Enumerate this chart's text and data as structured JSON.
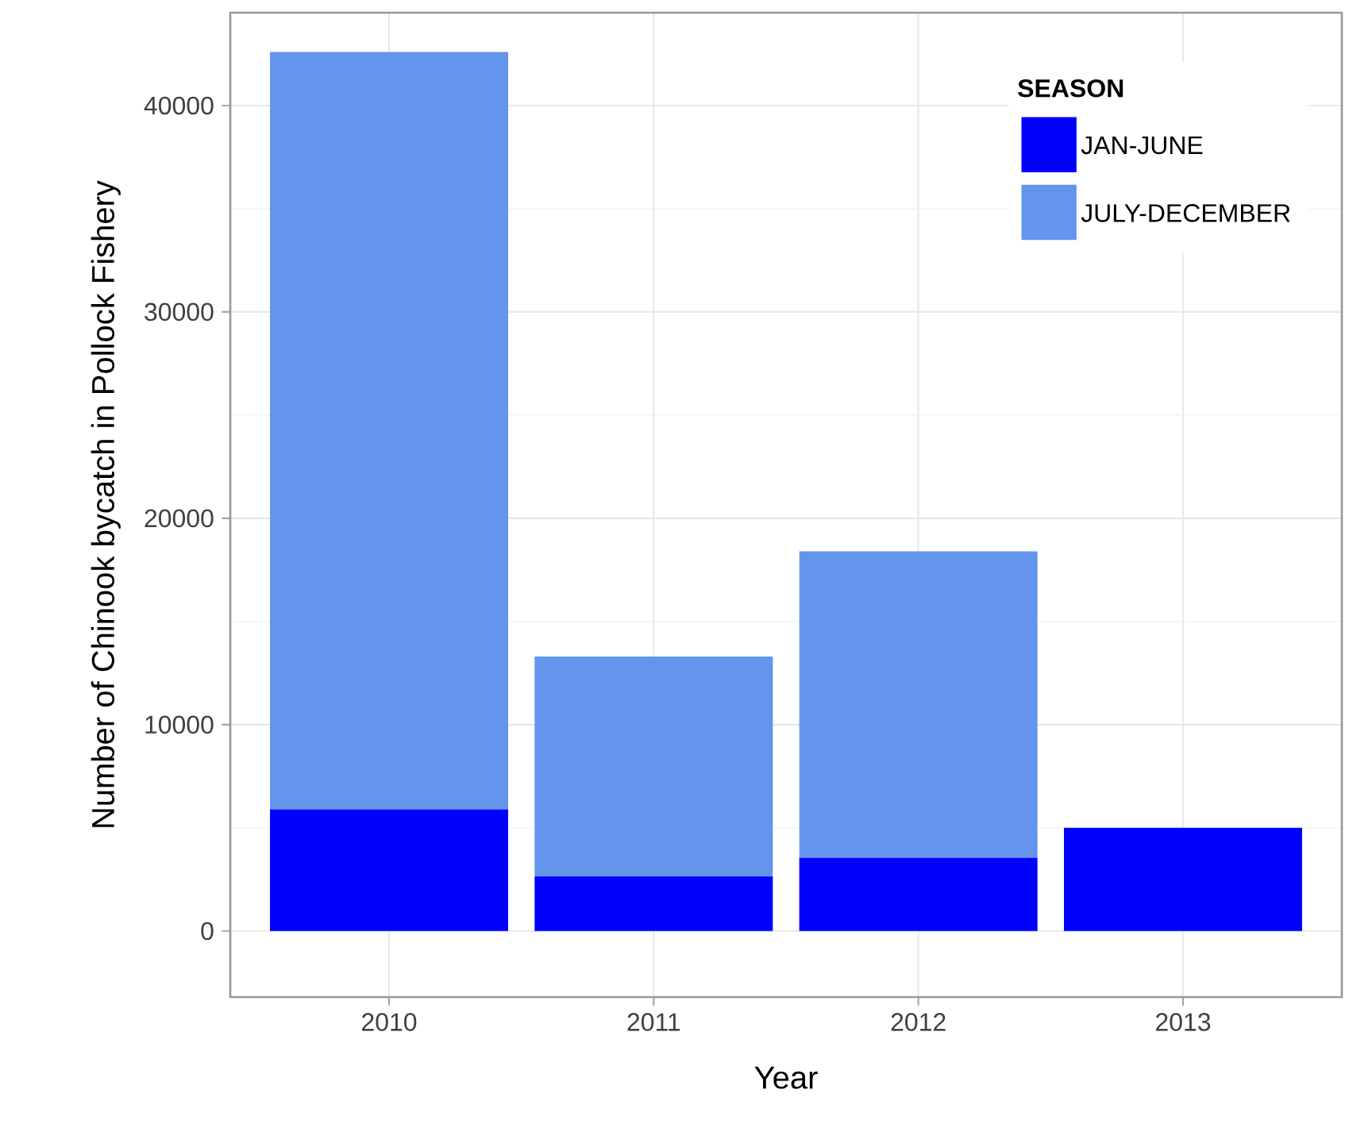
{
  "chart_data": {
    "type": "bar",
    "stacked": true,
    "xlabel": "Year",
    "ylabel": "Number of Chinook bycatch in Pollock Fishery",
    "legend_title": "SEASON",
    "categories": [
      "2010",
      "2011",
      "2012",
      "2013"
    ],
    "series": [
      {
        "name": "JAN-JUNE",
        "color": "#0000ff",
        "values": [
          5900,
          2650,
          3550,
          5000
        ]
      },
      {
        "name": "JULY-DECEMBER",
        "color": "#6495ed",
        "values": [
          36700,
          10650,
          14850,
          null
        ]
      }
    ],
    "ylim": [
      -3200,
      44500
    ],
    "yticks": [
      0,
      10000,
      20000,
      30000,
      40000
    ],
    "grid": true,
    "legend": "top right"
  }
}
